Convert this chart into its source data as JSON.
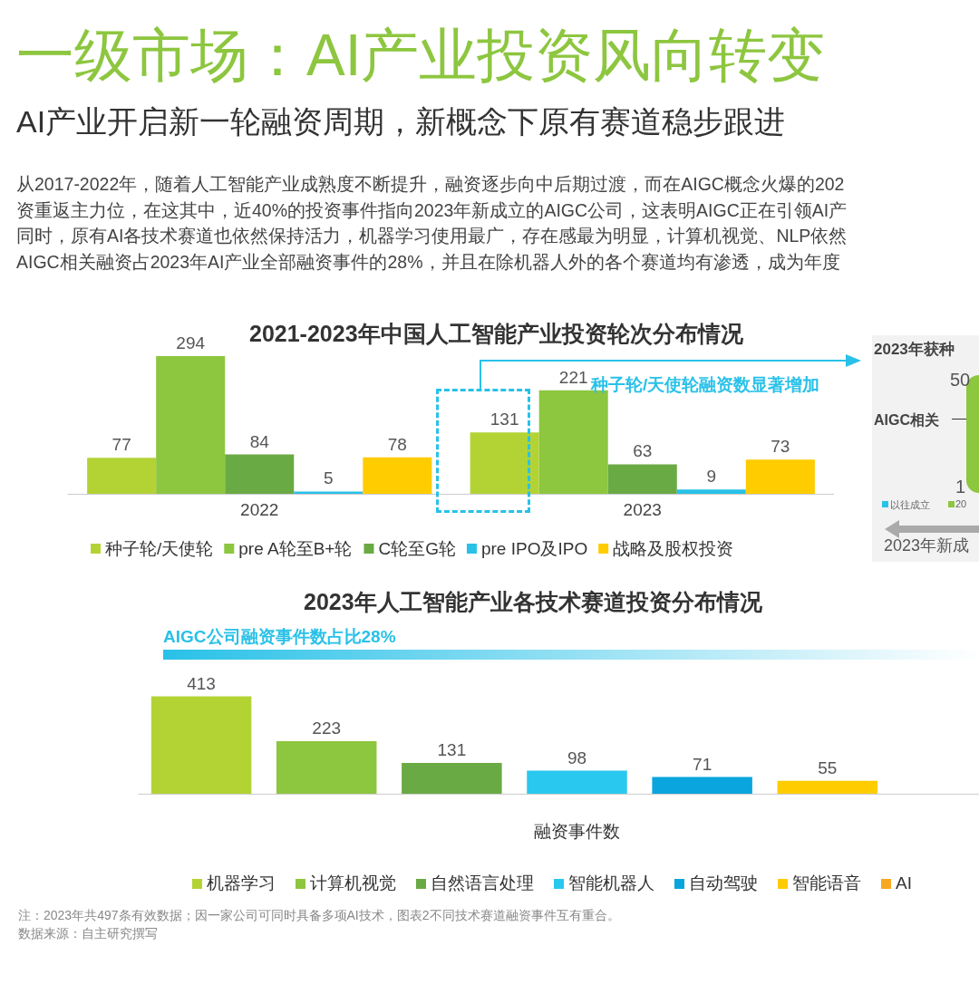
{
  "chart_data": [
    {
      "type": "other",
      "title": "一级市场：AI产业投资风向转变",
      "subtitle": "AI产业开启新一轮融资周期，新概念下原有赛道稳步跟进",
      "annotations": [
        "从2017-2022年，随着人工智能产业成熟度不断提升，融资逐步向中后期过渡，而在AIGC概念火爆的202",
        "资重返主力位，在这其中，近40%的投资事件指向2023年新成立的AIGC公司，这表明AIGC正在引领AI产",
        "同时，原有AI各技术赛道也依然保持活力，机器学习使用最广，存在感最为明显，计算机视觉、NLP依然",
        "AIGC相关融资占2023年AI产业全部融资事件的28%，并且在除机器人外的各个赛道均有渗透，成为年度"
      ]
    },
    {
      "type": "bar",
      "title": "2021-2023年中国人工智能产业投资轮次分布情况",
      "categories": [
        "2022",
        "2023"
      ],
      "series": [
        {
          "name": "种子轮/天使轮",
          "color": "#b3d335",
          "values": [
            77,
            131
          ]
        },
        {
          "name": "pre A轮至B+轮",
          "color": "#8dc63f",
          "values": [
            294,
            221
          ]
        },
        {
          "name": "C轮至G轮",
          "color": "#6aaa44",
          "values": [
            84,
            63
          ]
        },
        {
          "name": "pre IPO及IPO",
          "color": "#29c1e8",
          "values": [
            5,
            9
          ]
        },
        {
          "name": "战略及股权投资",
          "color": "#ffcc00",
          "values": [
            78,
            73
          ]
        }
      ],
      "data_labels": true,
      "legend": "bottom",
      "annotations": [
        "种子轮/天使轮融资数显著增加"
      ]
    },
    {
      "type": "other",
      "title": "2023年获种",
      "annotations": [
        "50",
        "AIGC相关",
        "1",
        "以往成立",
        "20",
        "2023年新成"
      ]
    },
    {
      "type": "bar",
      "title": "2023年人工智能产业各技术赛道投资分布情况",
      "xlabel": "融资事件数",
      "categories": [
        "机器学习",
        "计算机视觉",
        "自然语言处理",
        "智能机器人",
        "自动驾驶",
        "智能语音",
        "AI"
      ],
      "values": [
        413,
        223,
        131,
        98,
        71,
        55,
        null
      ],
      "colors": [
        "#b3d335",
        "#8dc63f",
        "#6aaa44",
        "#29c8ef",
        "#0aa5de",
        "#ffcc00",
        "#f7a823"
      ],
      "data_labels": true,
      "annotations": [
        "AIGC公司融资事件数占比28%",
        "注：2023年共497条有效数据；因一家公司可同时具备多项AI技术，图表2不同技术赛道融资事件互有重合。",
        "数据来源：自主研究撰写"
      ]
    }
  ]
}
